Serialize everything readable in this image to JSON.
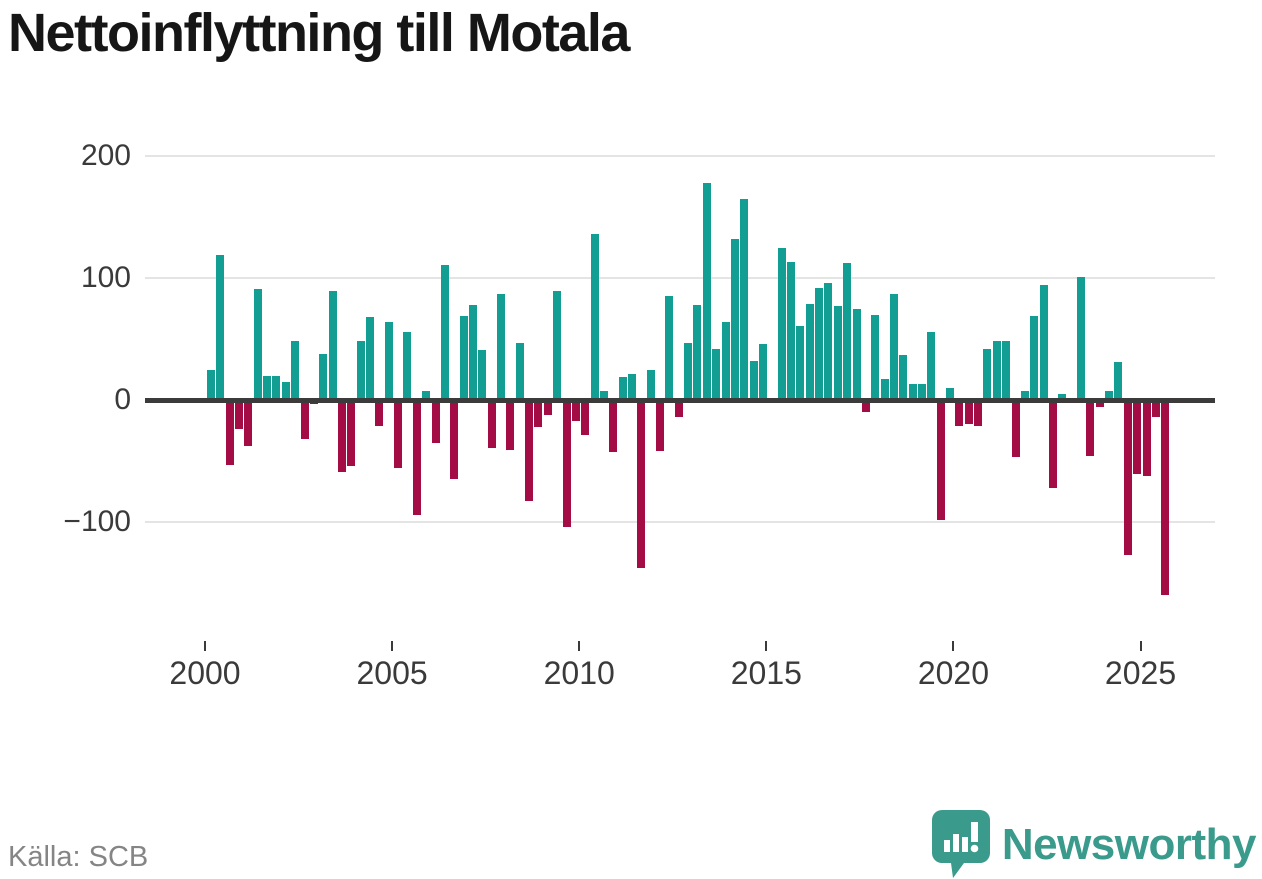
{
  "header": {
    "title": "Nettoinflyttning till Motala"
  },
  "footer": {
    "source": "Källa: SCB",
    "brand": "Newsworthy",
    "logo_icon": "speech-bubble-bar-chart-exclamation"
  },
  "colors": {
    "positive_bar": "#129e93",
    "negative_bar": "#a30c45",
    "zero_line": "#3b3b3b",
    "gridline": "#e4e4e4",
    "title_text": "#161616",
    "axis_text": "#3a3a3a",
    "source_text": "#858585",
    "brand_teal": "#3a9a8c"
  },
  "chart_data": {
    "type": "bar",
    "title": "Nettoinflyttning till Motala",
    "xlabel": "",
    "ylabel": "",
    "frequency": "quarterly",
    "start": "2000 Q1",
    "end": "2025 Q3",
    "x_tick_labels": [
      "2000",
      "2005",
      "2010",
      "2015",
      "2020",
      "2025"
    ],
    "x_tick_years": [
      2000,
      2005,
      2010,
      2015,
      2020,
      2025
    ],
    "y_tick_labels": [
      "200",
      "100",
      "0",
      "−100"
    ],
    "y_tick_values": [
      200,
      100,
      0,
      -100
    ],
    "ylim": [
      -175,
      212
    ],
    "grid": "horizontal",
    "legend": "none",
    "values_by_year": {
      "2000": [
        25,
        119,
        -53,
        -24
      ],
      "2001": [
        -38,
        91,
        20,
        20
      ],
      "2002": [
        15,
        48,
        -32,
        -3
      ],
      "2003": [
        38,
        89,
        -59,
        -54
      ],
      "2004": [
        48,
        68,
        -21,
        64
      ],
      "2005": [
        -56,
        56,
        -94,
        7
      ],
      "2006": [
        -35,
        111,
        -65,
        69
      ],
      "2007": [
        78,
        41,
        -39,
        87
      ],
      "2008": [
        -41,
        47,
        -83,
        -22
      ],
      "2009": [
        -12,
        89,
        -104,
        -17
      ],
      "2010": [
        -29,
        136,
        7,
        -43
      ],
      "2011": [
        19,
        21,
        -138,
        25
      ],
      "2012": [
        -42,
        85,
        -14,
        47
      ],
      "2013": [
        78,
        178,
        42,
        64
      ],
      "2014": [
        132,
        165,
        32,
        46
      ],
      "2015": [
        0,
        125,
        113,
        61
      ],
      "2016": [
        79,
        92,
        96,
        77
      ],
      "2017": [
        112,
        75,
        -10,
        70
      ],
      "2018": [
        17,
        87,
        37,
        13
      ],
      "2019": [
        13,
        56,
        -98,
        10
      ],
      "2020": [
        -21,
        -20,
        -21,
        42
      ],
      "2021": [
        48,
        48,
        -47,
        7
      ],
      "2022": [
        69,
        94,
        -72,
        5
      ],
      "2023": [
        0,
        101,
        -46,
        -6
      ],
      "2024": [
        7,
        31,
        -127,
        -61
      ],
      "2025": [
        -62,
        -14,
        -160
      ]
    }
  }
}
